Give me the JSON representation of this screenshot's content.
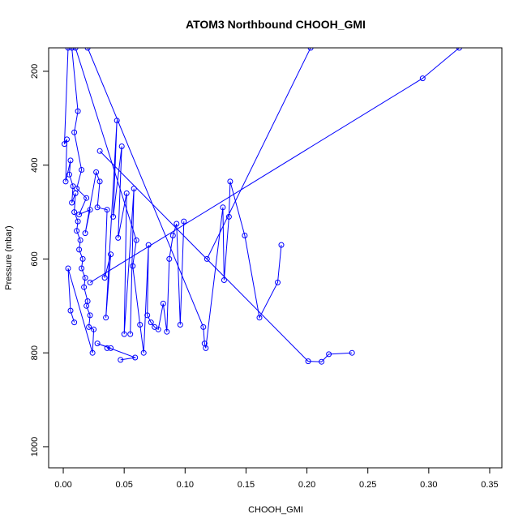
{
  "chart_data": {
    "type": "scatter",
    "title": "ATOM3 Northbound CHOOH_GMI",
    "xlabel": "CHOOH_GMI",
    "ylabel": "Pressure (mbar)",
    "xlim": [
      -0.012,
      0.36
    ],
    "ylim": [
      1045,
      150
    ],
    "y_reversed": true,
    "grid": false,
    "x_ticks": [
      0.0,
      0.05,
      0.1,
      0.15,
      0.2,
      0.25,
      0.3,
      0.35
    ],
    "x_tick_labels": [
      "0.00",
      "0.05",
      "0.10",
      "0.15",
      "0.20",
      "0.25",
      "0.30",
      "0.35"
    ],
    "y_ticks": [
      200,
      400,
      600,
      800,
      1000
    ],
    "y_tick_labels": [
      "200",
      "400",
      "600",
      "800",
      "1000"
    ],
    "color": "#0000ff",
    "series": [
      {
        "x": [
          0.004,
          0.001,
          0.003,
          0.002,
          0.006,
          0.005,
          0.008,
          0.007,
          0.01,
          0.009,
          0.012,
          0.011,
          0.014,
          0.013,
          0.016,
          0.015,
          0.018,
          0.017,
          0.02,
          0.019,
          0.022,
          0.021,
          0.025,
          0.024,
          0.004,
          0.006,
          0.009
        ],
        "y": [
          150,
          355,
          345,
          435,
          390,
          420,
          445,
          480,
          460,
          500,
          520,
          540,
          560,
          580,
          600,
          620,
          640,
          660,
          690,
          700,
          720,
          745,
          750,
          800,
          620,
          710,
          735
        ]
      },
      {
        "x": [
          0.007,
          0.012,
          0.009,
          0.015,
          0.011,
          0.019,
          0.013,
          0.022,
          0.018,
          0.027,
          0.03,
          0.028,
          0.036,
          0.034,
          0.039,
          0.035,
          0.044,
          0.041,
          0.048,
          0.045,
          0.052,
          0.05,
          0.058,
          0.055
        ],
        "y": [
          150,
          285,
          330,
          410,
          450,
          470,
          505,
          495,
          545,
          415,
          435,
          490,
          495,
          640,
          590,
          725,
          305,
          510,
          360,
          555,
          460,
          760,
          450,
          760
        ]
      },
      {
        "x": [
          0.01,
          0.06,
          0.057,
          0.063,
          0.066,
          0.07,
          0.069,
          0.072,
          0.075,
          0.078,
          0.082,
          0.085,
          0.087,
          0.09,
          0.093,
          0.096,
          0.099
        ],
        "y": [
          150,
          560,
          615,
          740,
          800,
          570,
          720,
          735,
          745,
          750,
          695,
          755,
          600,
          550,
          525,
          740,
          520
        ]
      },
      {
        "x": [
          0.02,
          0.115,
          0.116,
          0.117,
          0.131,
          0.132,
          0.136,
          0.137,
          0.149,
          0.161,
          0.176,
          0.179
        ],
        "y": [
          150,
          745,
          780,
          790,
          490,
          645,
          510,
          435,
          550,
          725,
          650,
          570
        ]
      },
      {
        "x": [
          0.03,
          0.201,
          0.212,
          0.218,
          0.237
        ],
        "y": [
          370,
          818,
          819,
          803,
          800
        ]
      },
      {
        "x": [
          0.022,
          0.295,
          0.325
        ],
        "y": [
          650,
          215,
          150
        ]
      },
      {
        "x": [
          0.118,
          0.203
        ],
        "y": [
          600,
          150
        ]
      },
      {
        "x": [
          0.047,
          0.059,
          0.028,
          0.039,
          0.036
        ],
        "y": [
          815,
          810,
          780,
          790,
          790
        ]
      }
    ]
  }
}
